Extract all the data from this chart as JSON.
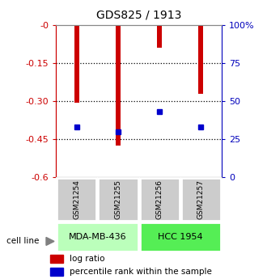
{
  "title": "GDS825 / 1913",
  "samples": [
    "GSM21254",
    "GSM21255",
    "GSM21256",
    "GSM21257"
  ],
  "log_ratios": [
    -0.305,
    -0.475,
    -0.09,
    -0.27
  ],
  "percentile_ranks_pct": [
    33,
    30,
    43,
    33
  ],
  "cell_lines": [
    {
      "name": "MDA-MB-436",
      "samples": [
        0,
        1
      ],
      "color": "#bbffbb"
    },
    {
      "name": "HCC 1954",
      "samples": [
        2,
        3
      ],
      "color": "#55ee55"
    }
  ],
  "ylim_left": [
    -0.6,
    0.0
  ],
  "ylim_right": [
    0,
    100
  ],
  "left_ticks": [
    0.0,
    -0.15,
    -0.3,
    -0.45,
    -0.6
  ],
  "right_ticks": [
    0,
    25,
    50,
    75,
    100
  ],
  "dotted_lines": [
    -0.15,
    -0.3,
    -0.45
  ],
  "bar_color": "#cc0000",
  "marker_color": "#0000cc",
  "sample_area_color": "#cccccc",
  "left_axis_color": "#cc0000",
  "right_axis_color": "#0000bb",
  "title_fontsize": 10
}
